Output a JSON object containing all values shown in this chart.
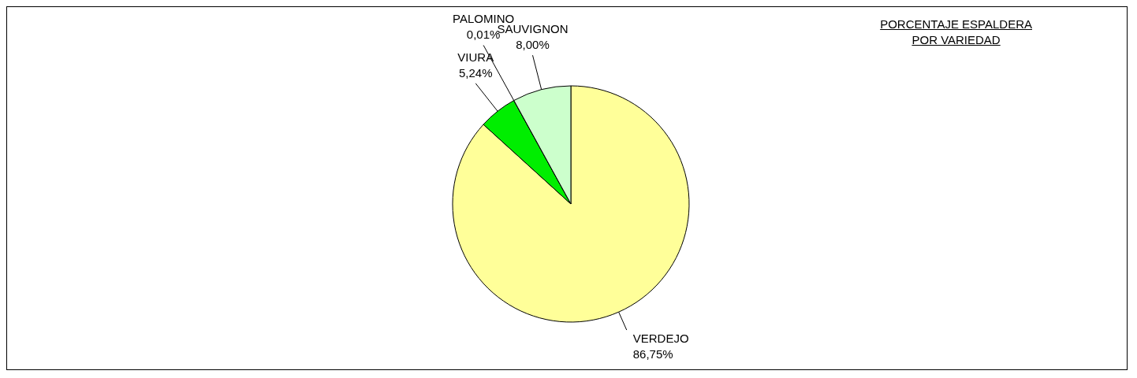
{
  "chart_data": {
    "type": "pie",
    "title": "PORCENTAJE ESPALDERA\nPOR VARIEDAD",
    "categories": [
      "VERDEJO",
      "VIURA",
      "PALOMINO",
      "SAUVIGNON"
    ],
    "values": [
      86.75,
      5.24,
      0.01,
      8.0
    ],
    "value_labels": [
      "86,75%",
      "5,24%",
      "0,01%",
      "8,00%"
    ],
    "colors": [
      "#ffff99",
      "#00ee00",
      "#008000",
      "#ccffcc"
    ],
    "legend": false
  }
}
